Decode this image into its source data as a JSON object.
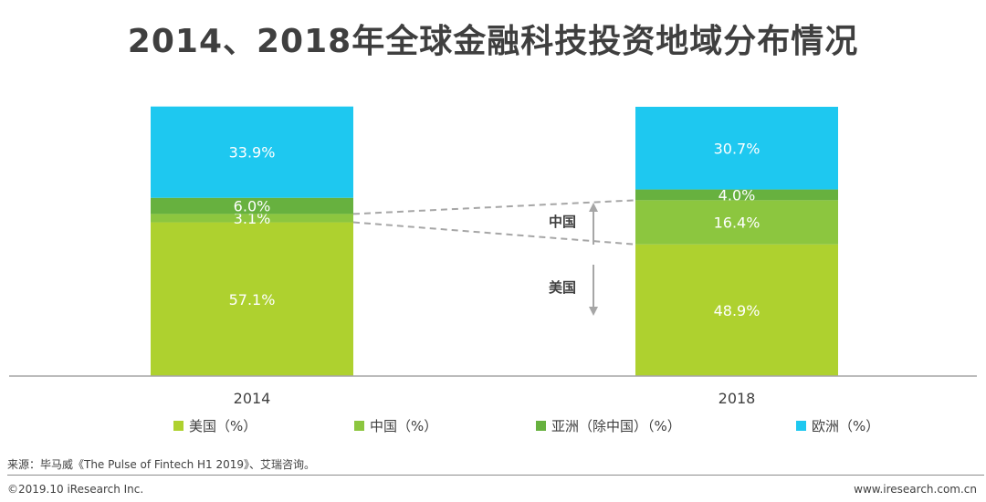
{
  "title": "2014、2018年全球金融科技投资地域分布情况",
  "chart_data": {
    "type": "bar",
    "stacked": true,
    "categories": [
      "2014",
      "2018"
    ],
    "series": [
      {
        "name": "美国（%）",
        "values": [
          57.1,
          48.9
        ],
        "labels": [
          "57.1%",
          "48.9%"
        ],
        "color": "#aed12f"
      },
      {
        "name": "中国（%）",
        "values": [
          3.1,
          16.4
        ],
        "labels": [
          "3.1%",
          "16.4%"
        ],
        "color": "#8cc63f"
      },
      {
        "name": "亚洲（除中国）（%）",
        "values": [
          6.0,
          4.0
        ],
        "labels": [
          "6.0%",
          "4.0%"
        ],
        "color": "#67b13f"
      },
      {
        "name": "欧洲（%）",
        "values": [
          33.9,
          30.7
        ],
        "labels": [
          "33.9%",
          "30.7%"
        ],
        "color": "#1ec8f0"
      }
    ],
    "ylim": [
      0,
      100
    ],
    "legend_position": "bottom",
    "annotations": [
      {
        "text": "中国",
        "arrow": "up"
      },
      {
        "text": "美国",
        "arrow": "down"
      }
    ]
  },
  "footer": {
    "source": "来源：毕马威《The Pulse of Fintech H1 2019》、艾瑞咨询。",
    "copyright": "©2019.10 iResearch Inc.",
    "website": "www.iresearch.com.cn"
  }
}
